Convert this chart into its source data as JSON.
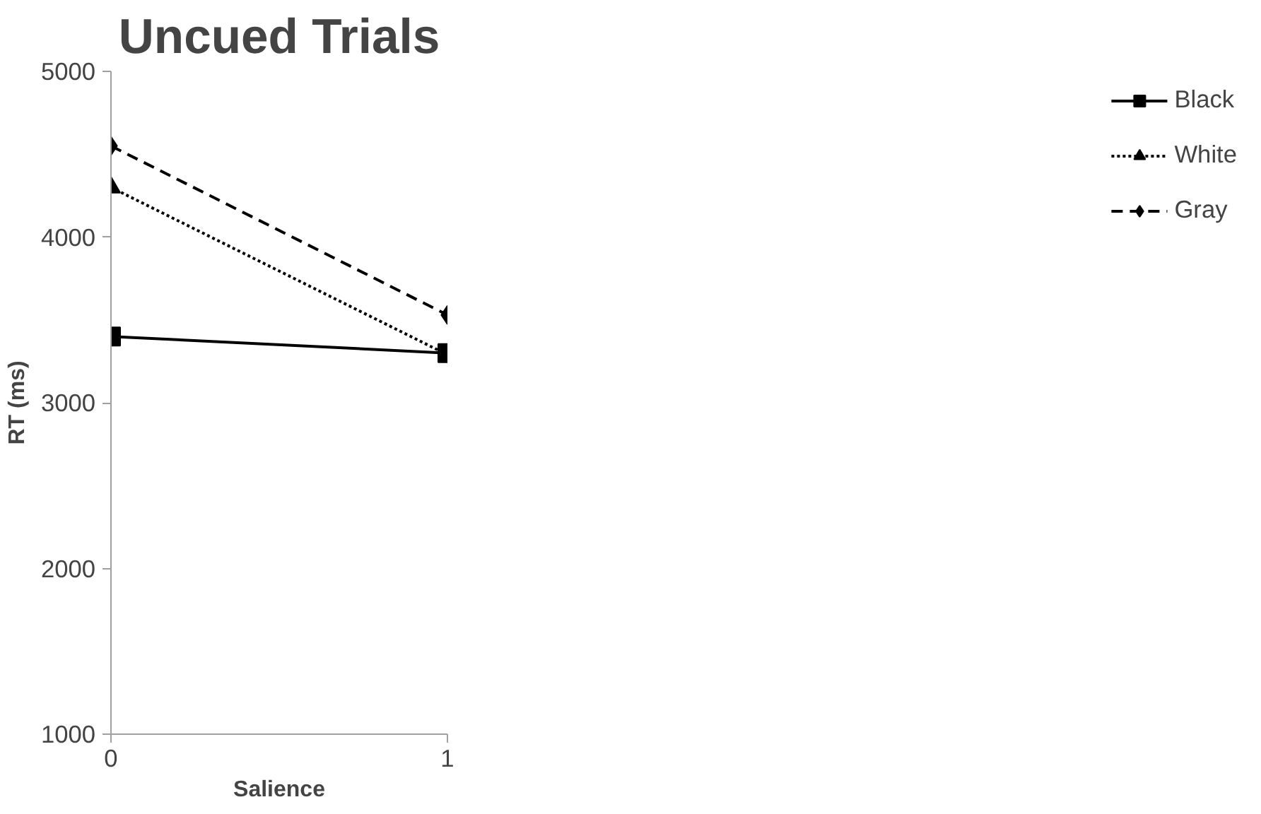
{
  "chart_data": {
    "type": "line",
    "title": "Uncued Trials",
    "xlabel": "Salience",
    "ylabel": "RT (ms)",
    "x": [
      0,
      1
    ],
    "xlim": [
      0,
      1
    ],
    "xticks": [
      0,
      1
    ],
    "ylim": [
      1000,
      5000
    ],
    "yticks": [
      1000,
      2000,
      3000,
      4000,
      5000
    ],
    "grid": false,
    "legend": "right",
    "series": [
      {
        "name": "Black",
        "color": "#000000",
        "values": [
          3400,
          3300
        ],
        "marker": "square",
        "line_style": "solid"
      },
      {
        "name": "White",
        "color": "#000000",
        "values": [
          4300,
          3290
        ],
        "marker": "triangle",
        "line_style": "dotted"
      },
      {
        "name": "Gray",
        "color": "#000000",
        "values": [
          4550,
          3530
        ],
        "marker": "diamond",
        "line_style": "dashed"
      }
    ]
  }
}
